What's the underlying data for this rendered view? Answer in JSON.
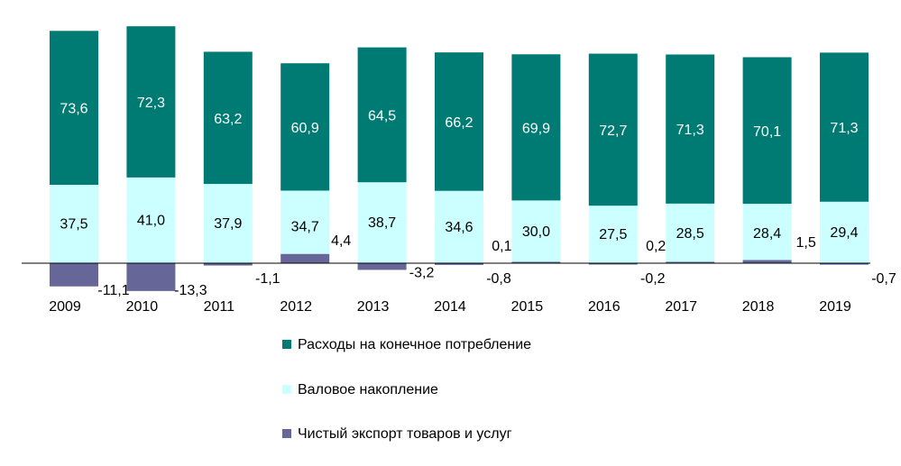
{
  "chart_data": {
    "type": "bar",
    "stacked": true,
    "categories": [
      "2009",
      "2010",
      "2011",
      "2012",
      "2013",
      "2014",
      "2015",
      "2016",
      "2017",
      "2018",
      "2019"
    ],
    "series": [
      {
        "name": "Расходы на конечное потребление",
        "color": "#007b73",
        "values": [
          73.6,
          72.3,
          63.2,
          60.9,
          64.5,
          66.2,
          69.9,
          72.7,
          71.3,
          70.1,
          71.3
        ],
        "labels": [
          "73,6",
          "72,3",
          "63,2",
          "60,9",
          "64,5",
          "66,2",
          "69,9",
          "72,7",
          "71,3",
          "70,1",
          "71,3"
        ]
      },
      {
        "name": "Валовое накопление",
        "color": "#ccffff",
        "values": [
          37.5,
          41.0,
          37.9,
          34.7,
          38.7,
          34.6,
          30.0,
          27.5,
          28.5,
          28.4,
          29.4
        ],
        "labels": [
          "37,5",
          "41,0",
          "37,9",
          "34,7",
          "38,7",
          "34,6",
          "30,0",
          "27,5",
          "28,5",
          "28,4",
          "29,4"
        ]
      },
      {
        "name": "Чистый экспорт товаров и услуг",
        "color": "#666699",
        "values": [
          -11.1,
          -13.3,
          -1.1,
          4.4,
          -3.2,
          -0.8,
          0.1,
          -0.2,
          0.2,
          1.5,
          -0.7
        ],
        "labels": [
          "-11,1",
          "-13,3",
          "-1,1",
          "4,4",
          "-3,2",
          "-0,8",
          "0,1",
          "-0,2",
          "0,2",
          "1,5",
          "-0,7"
        ]
      }
    ],
    "legend_position": "bottom",
    "grid": false
  }
}
